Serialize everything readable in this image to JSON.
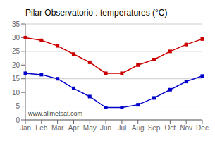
{
  "chart_data": {
    "type": "line",
    "title": "Pilar Observatorio : temperatures (°C)",
    "categories": [
      "Jan",
      "Feb",
      "Mar",
      "Apr",
      "May",
      "Jun",
      "Jul",
      "Aug",
      "Sep",
      "Oct",
      "Nov",
      "Dec"
    ],
    "series": [
      {
        "color": "#cc0000",
        "values": [
          30,
          29,
          27,
          24,
          21,
          17,
          17,
          20,
          22,
          25,
          27.5,
          29.5
        ]
      },
      {
        "color": "#0000cc",
        "values": [
          17,
          16.5,
          15,
          11.5,
          8.5,
          4.5,
          4.5,
          5.5,
          8,
          11,
          14,
          16
        ]
      }
    ],
    "ylim": [
      0,
      35
    ],
    "yticks": [
      0,
      5,
      10,
      15,
      20,
      25,
      30,
      35
    ],
    "grid": "y",
    "marker": "square",
    "annotations": [
      "www.allmetsat.com"
    ]
  }
}
